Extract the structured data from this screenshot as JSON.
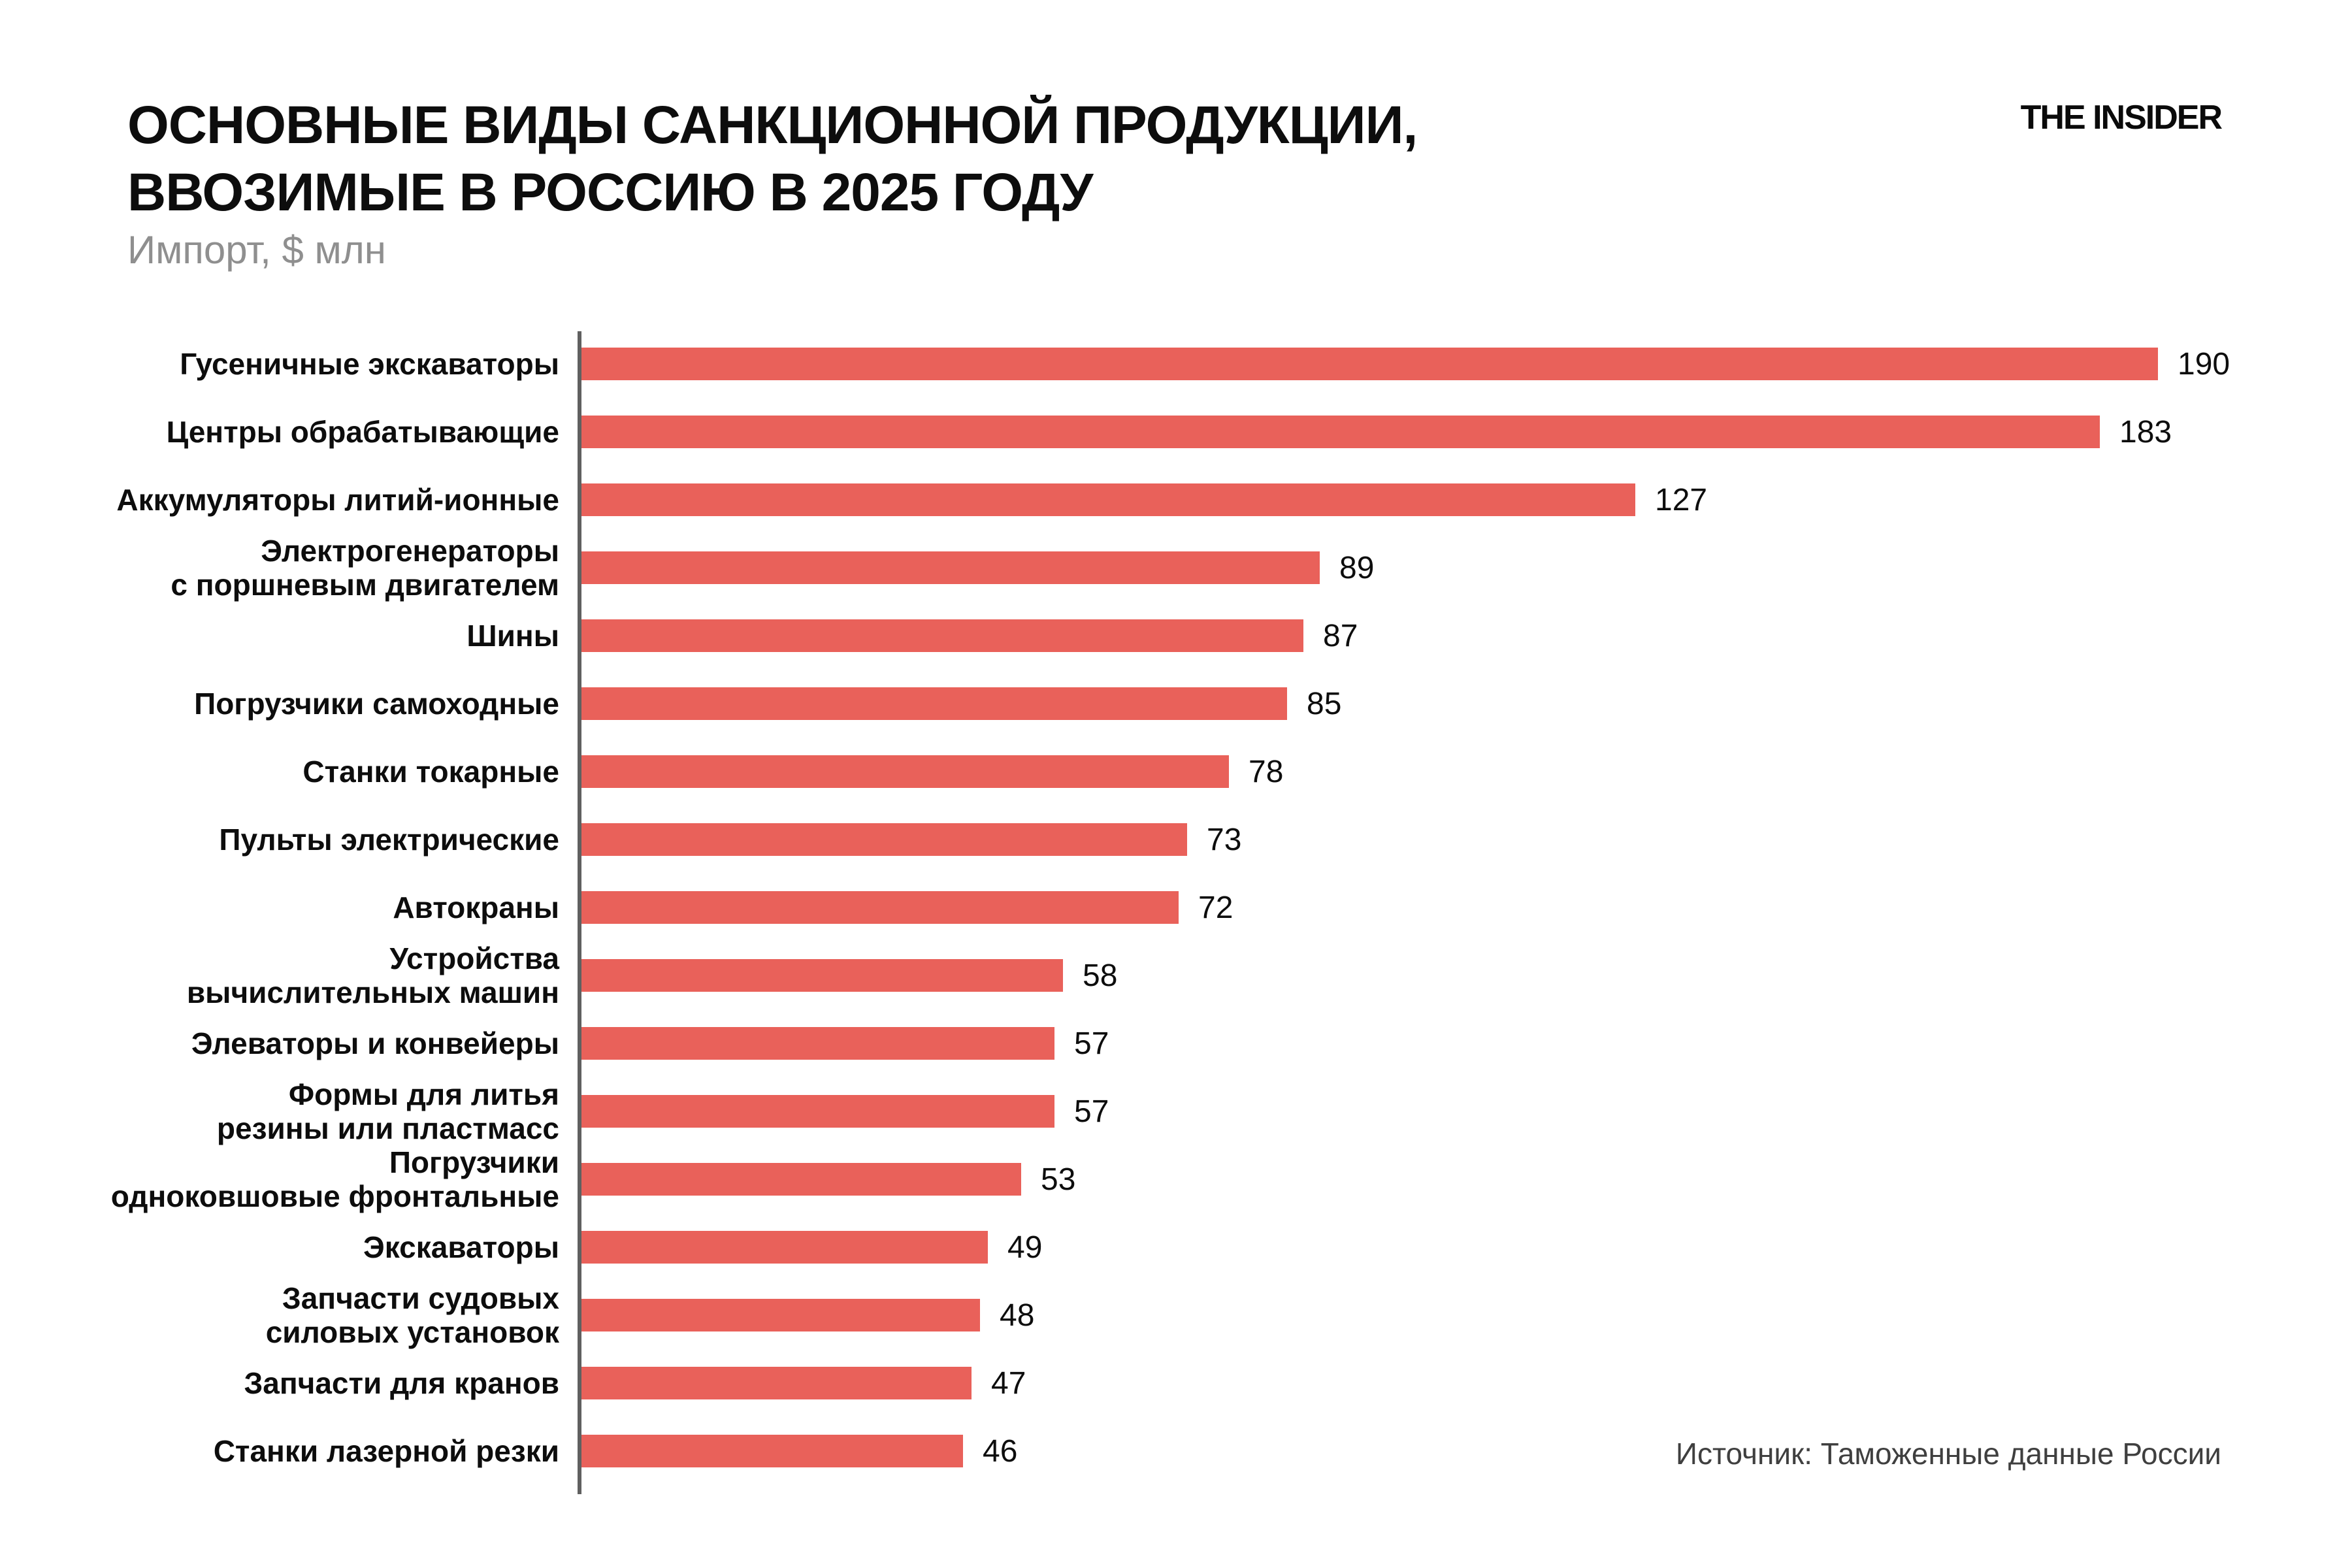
{
  "header": {
    "title_line1": "ОСНОВНЫЕ ВИДЫ САНКЦИОННОЙ ПРОДУКЦИИ,",
    "title_line2": "ВВОЗИМЫЕ В РОССИЮ В 2025 ГОДУ",
    "subtitle": "Импорт, $ млн",
    "logo": "THE INSIDER"
  },
  "footer": {
    "source": "Источник: Таможенные данные России"
  },
  "colors": {
    "bar": "#E9615A",
    "axis": "#606060",
    "subtitle": "#8f8f8f",
    "source_text": "#3f3f3f",
    "title": "#0d0d0d"
  },
  "chart_data": {
    "type": "bar",
    "orientation": "horizontal",
    "title": "ОСНОВНЫЕ ВИДЫ САНКЦИОННОЙ ПРОДУКЦИИ, ВВОЗИМЫЕ В РОССИЮ В 2025 ГОДУ",
    "subtitle": "Импорт, $ млн",
    "unit": "$ млн",
    "categories": [
      "Гусеничные экскаваторы",
      "Центры обрабатывающие",
      "Аккумуляторы литий-ионные",
      "Электрогенераторы с поршневым двигателем",
      "Шины",
      "Погрузчики самоходные",
      "Станки токарные",
      "Пульты электрические",
      "Автокраны",
      "Устройства вычислительных машин",
      "Элеваторы и конвейеры",
      "Формы для литья резины или пластмасс",
      "Погрузчики одноковшовые фронтальные",
      "Экскаваторы",
      "Запчасти судовых силовых установок",
      "Запчасти для кранов",
      "Станки лазерной резки"
    ],
    "label_lines": [
      [
        "Гусеничные экскаваторы"
      ],
      [
        "Центры обрабатывающие"
      ],
      [
        "Аккумуляторы литий-ионные"
      ],
      [
        "Электрогенераторы",
        "с поршневым двигателем"
      ],
      [
        "Шины"
      ],
      [
        "Погрузчики самоходные"
      ],
      [
        "Станки токарные"
      ],
      [
        "Пульты электрические"
      ],
      [
        "Автокраны"
      ],
      [
        "Устройства",
        "вычислительных машин"
      ],
      [
        "Элеваторы и конвейеры"
      ],
      [
        "Формы для литья",
        "резины или пластмасс"
      ],
      [
        "Погрузчики",
        "одноковшовые фронтальные"
      ],
      [
        "Экскаваторы"
      ],
      [
        "Запчасти судовых",
        "силовых установок"
      ],
      [
        "Запчасти для кранов"
      ],
      [
        "Станки лазерной резки"
      ]
    ],
    "values": [
      190,
      183,
      127,
      89,
      87,
      85,
      78,
      73,
      72,
      58,
      57,
      57,
      53,
      49,
      48,
      47,
      46
    ],
    "xlim": [
      0,
      200
    ],
    "value_labels": true,
    "grid": false,
    "legend": false,
    "source": "Источник: Таможенные данные России"
  }
}
